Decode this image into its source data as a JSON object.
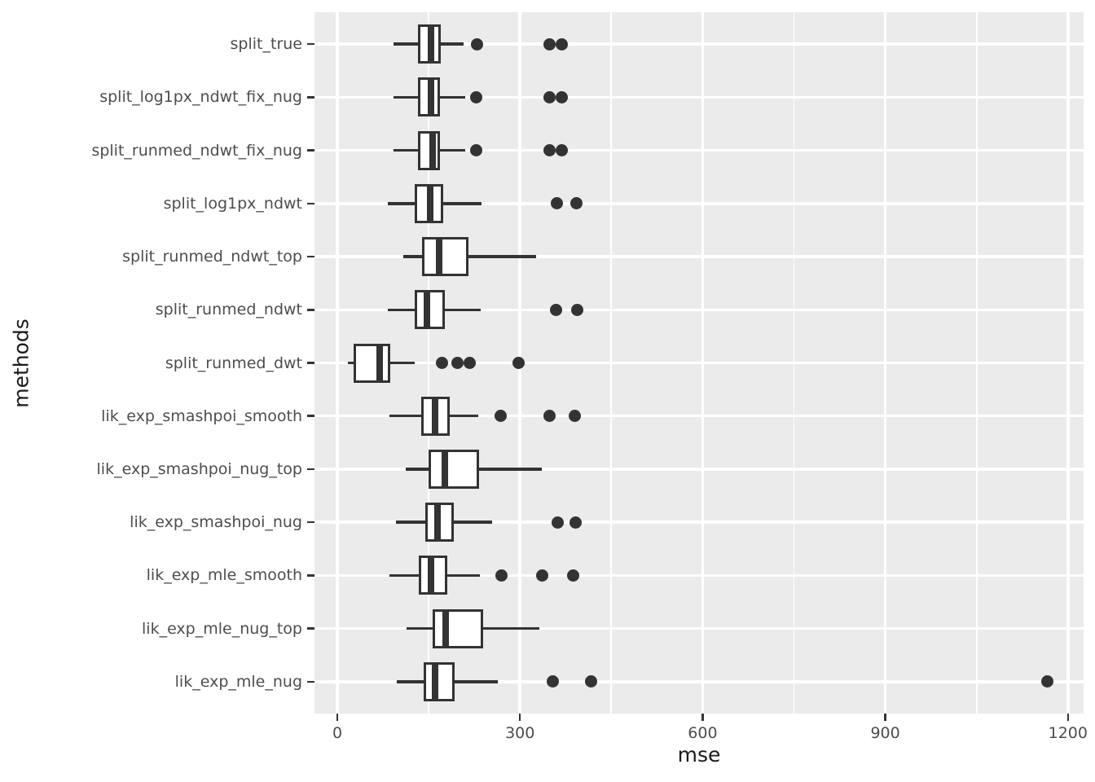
{
  "axis_titles": {
    "x": "mse",
    "y": "methods"
  },
  "chart_data": {
    "type": "boxplot",
    "orientation": "horizontal",
    "title": "",
    "xlabel": "mse",
    "ylabel": "methods",
    "xlim": [
      -37.5,
      1225.7
    ],
    "x_major_ticks": [
      0,
      300,
      600,
      900,
      1200
    ],
    "x_major_tick_labels": [
      "0",
      "300",
      "600",
      "900",
      "1200"
    ],
    "x_minor_ticks": [
      150,
      450,
      750,
      1050
    ],
    "grid": true,
    "legend_position": "none",
    "categories_top_to_bottom": [
      "split_true",
      "split_log1px_ndwt_fix_nug",
      "split_runmed_ndwt_fix_nug",
      "split_log1px_ndwt",
      "split_runmed_ndwt_top",
      "split_runmed_ndwt",
      "split_runmed_dwt",
      "lik_exp_smashpoi_smooth",
      "lik_exp_smashpoi_nug_top",
      "lik_exp_smashpoi_nug",
      "lik_exp_mle_smooth",
      "lik_exp_mle_nug_top",
      "lik_exp_mle_nug"
    ],
    "series": [
      {
        "method": "split_true",
        "whisker_lo": 92,
        "q1": 132,
        "median": 154,
        "q3": 170,
        "whisker_hi": 208,
        "outliers": [
          230,
          349,
          368
        ]
      },
      {
        "method": "split_log1px_ndwt_fix_nug",
        "whisker_lo": 92,
        "q1": 132,
        "median": 154,
        "q3": 169,
        "whisker_hi": 210,
        "outliers": [
          228,
          349,
          368
        ]
      },
      {
        "method": "split_runmed_ndwt_fix_nug",
        "whisker_lo": 92,
        "q1": 133,
        "median": 157,
        "q3": 168,
        "whisker_hi": 210,
        "outliers": [
          228,
          349,
          368
        ]
      },
      {
        "method": "split_log1px_ndwt",
        "whisker_lo": 83,
        "q1": 127,
        "median": 152,
        "q3": 174,
        "whisker_hi": 237,
        "outliers": [
          360,
          393
        ]
      },
      {
        "method": "split_runmed_ndwt_top",
        "whisker_lo": 108,
        "q1": 139,
        "median": 167,
        "q3": 216,
        "whisker_hi": 326,
        "outliers": []
      },
      {
        "method": "split_runmed_ndwt",
        "whisker_lo": 83,
        "q1": 127,
        "median": 147,
        "q3": 176,
        "whisker_hi": 235,
        "outliers": [
          359,
          394
        ]
      },
      {
        "method": "split_runmed_dwt",
        "whisker_lo": 17,
        "q1": 27,
        "median": 69,
        "q3": 87,
        "whisker_hi": 127,
        "outliers": [
          172,
          197,
          217,
          298
        ]
      },
      {
        "method": "lik_exp_smashpoi_smooth",
        "whisker_lo": 85,
        "q1": 138,
        "median": 161,
        "q3": 185,
        "whisker_hi": 232,
        "outliers": [
          268,
          348,
          390
        ]
      },
      {
        "method": "lik_exp_smashpoi_nug_top",
        "whisker_lo": 112,
        "q1": 150,
        "median": 176,
        "q3": 233,
        "whisker_hi": 336,
        "outliers": []
      },
      {
        "method": "lik_exp_smashpoi_nug",
        "whisker_lo": 96,
        "q1": 144,
        "median": 165,
        "q3": 192,
        "whisker_hi": 254,
        "outliers": [
          362,
          391
        ]
      },
      {
        "method": "lik_exp_mle_smooth",
        "whisker_lo": 86,
        "q1": 134,
        "median": 154,
        "q3": 181,
        "whisker_hi": 234,
        "outliers": [
          270,
          336,
          388
        ]
      },
      {
        "method": "lik_exp_mle_nug_top",
        "whisker_lo": 114,
        "q1": 157,
        "median": 178,
        "q3": 240,
        "whisker_hi": 332,
        "outliers": []
      },
      {
        "method": "lik_exp_mle_nug",
        "whisker_lo": 98,
        "q1": 142,
        "median": 161,
        "q3": 193,
        "whisker_hi": 263,
        "outliers": [
          354,
          417,
          1166
        ]
      }
    ],
    "colors": {
      "panel_background": "#EBEBEB",
      "grid": "#FFFFFF",
      "box_stroke": "#333333",
      "box_fill": "#FFFFFF",
      "outlier": "#333333",
      "tick_text": "#4D4D4D",
      "axis_title_text": "#1A1A1A"
    }
  }
}
